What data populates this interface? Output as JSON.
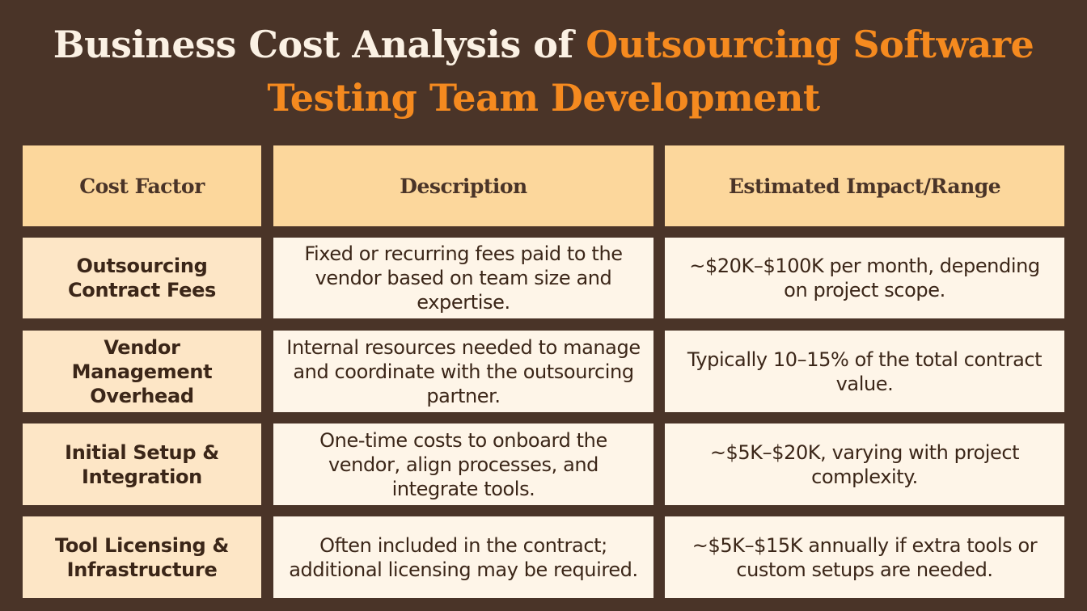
{
  "title": {
    "part1": "Business Cost Analysis of ",
    "part2": "Outsourcing Software",
    "part3": "Testing Team Development"
  },
  "table": {
    "headers": [
      "Cost Factor",
      "Description",
      "Estimated Impact/Range"
    ],
    "rows": [
      {
        "factor": "Outsourcing Contract Fees",
        "description": "Fixed or recurring fees paid to the vendor based on team size and expertise.",
        "impact": "~$20K–$100K per month, depending on project scope."
      },
      {
        "factor": "Vendor Management Overhead",
        "description": "Internal resources needed to manage and coordinate with the outsourcing partner.",
        "impact": "Typically 10–15% of the total contract value."
      },
      {
        "factor": "Initial Setup & Integration",
        "description": "One-time costs to onboard the vendor, align processes, and integrate tools.",
        "impact": "~$5K–$20K, varying with project complexity."
      },
      {
        "factor": "Tool Licensing & Infrastructure",
        "description": "Often included in the contract; additional licensing may be required.",
        "impact": "~$5K–$15K annually if extra tools or custom setups are needed."
      }
    ]
  },
  "colors": {
    "background": "#4a3428",
    "accent": "#f58a1f",
    "header_fill": "#fcd79c",
    "factor_fill": "#fde6c6",
    "cell_fill": "#fef5e8"
  }
}
